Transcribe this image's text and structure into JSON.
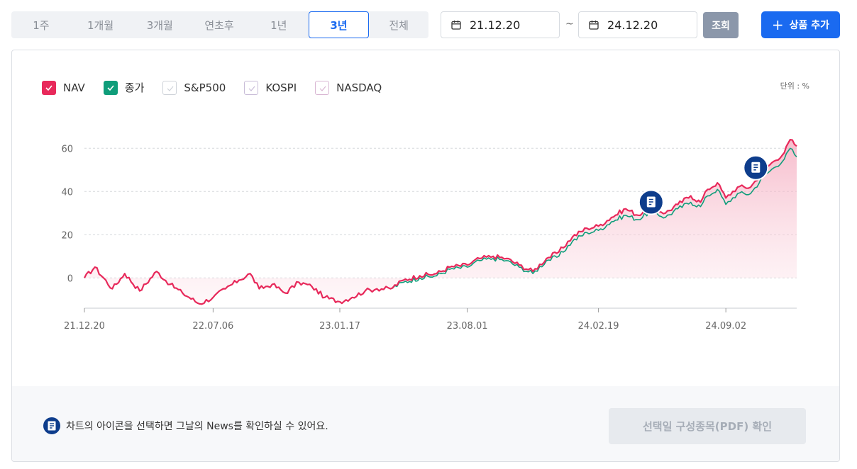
{
  "periods": [
    {
      "label": "1주",
      "active": false
    },
    {
      "label": "1개월",
      "active": false
    },
    {
      "label": "3개월",
      "active": false
    },
    {
      "label": "연초후",
      "active": false
    },
    {
      "label": "1년",
      "active": false
    },
    {
      "label": "3년",
      "active": true
    },
    {
      "label": "전체",
      "active": false
    }
  ],
  "date_range": {
    "start": "21.12.20",
    "separator": "~",
    "end": "24.12.20"
  },
  "query_label": "조회",
  "add_label": "상품 추가",
  "legend": [
    {
      "label": "NAV",
      "checked": true,
      "color": "#e8295b"
    },
    {
      "label": "종가",
      "checked": true,
      "color": "#0f9d7a"
    },
    {
      "label": "S&P500",
      "checked": false,
      "color": "#cfd3d9"
    },
    {
      "label": "KOSPI",
      "checked": false,
      "color": "#c9bdd8"
    },
    {
      "label": "NASDAQ",
      "checked": false,
      "color": "#d9b6d3"
    }
  ],
  "unit_label": "단위 : %",
  "notice_text": "차트의 아이콘을 선택하면 그날의 News를 확인하실 수 있어요.",
  "pdf_label": "선택일 구성종목(PDF) 확인",
  "chart_data": {
    "type": "line",
    "title": "",
    "xlabel": "",
    "ylabel": "",
    "x_ticks": [
      "21.12.20",
      "22.07.06",
      "23.01.17",
      "23.08.01",
      "24.02.19",
      "24.09.02"
    ],
    "y_ticks": [
      0,
      20,
      40,
      60
    ],
    "xlim": [
      "21.12.20",
      "24.12.20"
    ],
    "ylim": [
      -14,
      66
    ],
    "grid": "horizontal-dashed",
    "series": [
      {
        "name": "NAV",
        "color": "#e8295b",
        "area_fill": true,
        "x": [
          "21.12.20",
          "22.01.05",
          "22.02.01",
          "22.02.20",
          "22.03.15",
          "22.04.10",
          "22.05.01",
          "22.05.20",
          "22.06.15",
          "22.07.06",
          "22.07.25",
          "22.08.15",
          "22.09.01",
          "22.09.15",
          "22.10.05",
          "22.10.25",
          "22.11.15",
          "22.12.05",
          "22.12.25",
          "23.01.17",
          "23.02.05",
          "23.02.25",
          "23.03.15",
          "23.04.05",
          "23.04.25",
          "23.05.20",
          "23.06.15",
          "23.07.05",
          "23.08.01",
          "23.08.20",
          "23.09.10",
          "23.09.30",
          "23.10.20",
          "23.11.10",
          "23.12.01",
          "23.12.20",
          "24.01.10",
          "24.02.01",
          "24.02.19",
          "24.03.10",
          "24.04.01",
          "24.04.20",
          "24.05.10",
          "24.06.01",
          "24.06.20",
          "24.07.10",
          "24.07.25",
          "24.08.05",
          "24.08.20",
          "24.09.02",
          "24.09.20",
          "24.10.10",
          "24.10.30",
          "24.11.15",
          "24.12.01",
          "24.12.10",
          "24.12.20"
        ],
        "values": [
          0,
          5,
          -5,
          2,
          -6,
          3,
          -3,
          -7,
          -12,
          -9,
          -5,
          -1,
          2,
          -5,
          -3,
          -7,
          -2,
          -4,
          -9,
          -11,
          -9,
          -6,
          -5,
          -5,
          -1,
          1,
          2,
          5,
          6,
          9,
          10,
          9,
          6,
          3,
          9,
          12,
          19,
          23,
          24,
          28,
          32,
          29,
          33,
          30,
          34,
          38,
          35,
          41,
          44,
          37,
          42,
          42,
          50,
          54,
          58,
          64,
          61
        ]
      },
      {
        "name": "종가",
        "color": "#0f9d7a",
        "area_fill": false,
        "x": [
          "21.12.20",
          "22.01.05",
          "22.02.01",
          "22.02.20",
          "22.03.15",
          "22.04.10",
          "22.05.01",
          "22.05.20",
          "22.06.15",
          "22.07.06",
          "22.07.25",
          "22.08.15",
          "22.09.01",
          "22.09.15",
          "22.10.05",
          "22.10.25",
          "22.11.15",
          "22.12.05",
          "22.12.25",
          "23.01.17",
          "23.02.05",
          "23.02.25",
          "23.03.15",
          "23.04.05",
          "23.04.25",
          "23.05.20",
          "23.06.15",
          "23.07.05",
          "23.08.01",
          "23.08.20",
          "23.09.10",
          "23.09.30",
          "23.10.20",
          "23.11.10",
          "23.12.01",
          "23.12.20",
          "24.01.10",
          "24.02.01",
          "24.02.19",
          "24.03.10",
          "24.04.01",
          "24.04.20",
          "24.05.10",
          "24.06.01",
          "24.06.20",
          "24.07.10",
          "24.07.25",
          "24.08.05",
          "24.08.20",
          "24.09.02",
          "24.09.20",
          "24.10.10",
          "24.10.30",
          "24.11.15",
          "24.12.01",
          "24.12.10",
          "24.12.20"
        ],
        "values": [
          0,
          5,
          -5,
          2,
          -6,
          3,
          -3,
          -7,
          -12,
          -9,
          -5,
          -1,
          2,
          -5,
          -3,
          -7,
          -2,
          -4,
          -9,
          -11,
          -9,
          -6,
          -5,
          -5,
          -2,
          0,
          1,
          4,
          5,
          8,
          9,
          8,
          5,
          2,
          8,
          10,
          17,
          21,
          22,
          26,
          29,
          27,
          31,
          28,
          32,
          35,
          33,
          38,
          41,
          34,
          39,
          39,
          47,
          51,
          55,
          60,
          56
        ]
      }
    ],
    "markers": [
      {
        "type": "news",
        "x": "24.05.10",
        "y": 35
      },
      {
        "type": "news",
        "x": "24.10.18",
        "y": 51
      }
    ]
  }
}
